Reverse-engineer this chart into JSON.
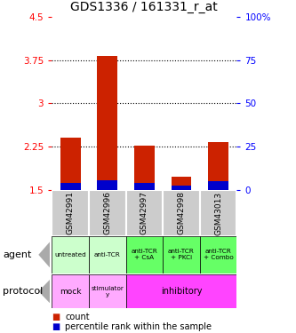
{
  "title": "GDS1336 / 161331_r_at",
  "samples": [
    "GSM42991",
    "GSM42996",
    "GSM42997",
    "GSM42998",
    "GSM43013"
  ],
  "red_bar_tops": [
    2.4,
    3.82,
    2.27,
    1.72,
    2.32
  ],
  "red_bar_bottoms": [
    1.5,
    1.5,
    1.5,
    1.5,
    1.5
  ],
  "blue_bar_tops": [
    1.62,
    1.67,
    1.62,
    1.57,
    1.65
  ],
  "blue_bar_bottoms": [
    1.5,
    1.5,
    1.5,
    1.5,
    1.5
  ],
  "ylim_left": [
    1.5,
    4.5
  ],
  "yticks_left": [
    1.5,
    2.25,
    3.0,
    3.75,
    4.5
  ],
  "ytick_labels_left": [
    "1.5",
    "2.25",
    "3",
    "3.75",
    "4.5"
  ],
  "ylim_right": [
    0,
    100
  ],
  "yticks_right": [
    0,
    25,
    50,
    75,
    100
  ],
  "ytick_labels_right": [
    "0",
    "25",
    "50",
    "75",
    "100%"
  ],
  "hlines": [
    2.25,
    3.0,
    3.75
  ],
  "agent_labels": [
    "untreated",
    "anti-TCR",
    "anti-TCR\n+ CsA",
    "anti-TCR\n+ PKCi",
    "anti-TCR\n+ Combo"
  ],
  "agent_colors": [
    "#ccffcc",
    "#ccffcc",
    "#66ff66",
    "#66ff66",
    "#66ff66"
  ],
  "protocol_mock_color": "#ffaaff",
  "protocol_stim_color": "#ffaaff",
  "protocol_inhib_color": "#ff44ff",
  "sample_bg_color": "#cccccc",
  "bar_width": 0.55,
  "red_color": "#cc2200",
  "blue_color": "#0000cc",
  "title_fontsize": 10
}
